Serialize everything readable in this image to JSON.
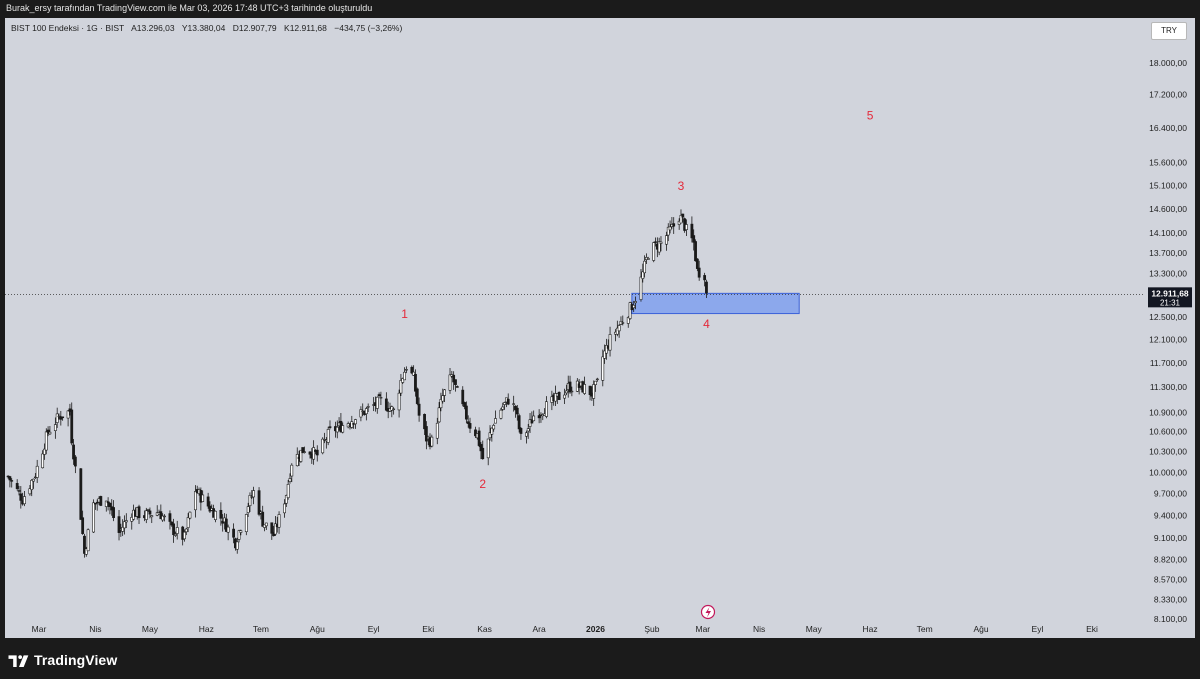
{
  "header": {
    "attribution": "Burak_ersy tarafından TradingView.com ile Mar 03, 2026 17:48 UTC+3 tarihinde oluşturuldu"
  },
  "legend": {
    "symbol": "BIST 100 Endeksi · 1G · BIST",
    "open": "A13.296,03",
    "high": "Y13.380,04",
    "low": "D12.907,79",
    "close": "K12.911,68",
    "change": "−434,75 (−3,26%)"
  },
  "currency": "TRY",
  "brand": {
    "name": "TradingView"
  },
  "colors": {
    "background": "#d1d4dc",
    "candle": "#1a1a1a",
    "annotation": "#e4293a",
    "zone_fill": "#7b9cf0",
    "zone_border": "#3b62d8",
    "price_label_bg": "#131722"
  },
  "chart_data": {
    "type": "candlestick",
    "y_axis": {
      "ticks": [
        "18.000,00",
        "17.200,00",
        "16.400,00",
        "15.600,00",
        "15.100,00",
        "14.600,00",
        "14.100,00",
        "13.700,00",
        "13.300,00",
        "12.500,00",
        "12.100,00",
        "11.700,00",
        "11.300,00",
        "10.900,00",
        "10.600,00",
        "10.300,00",
        "10.000,00",
        "9.700,00",
        "9.400,00",
        "9.100,00",
        "8.820,00",
        "8.570,00",
        "8.330,00",
        "8.100,00"
      ],
      "tick_values": [
        18000,
        17200,
        16400,
        15600,
        15100,
        14600,
        14100,
        13700,
        13300,
        12500,
        12100,
        11700,
        11300,
        10900,
        10600,
        10300,
        10000,
        9700,
        9400,
        9100,
        8820,
        8570,
        8330,
        8100
      ],
      "scale": "log"
    },
    "x_axis": {
      "labels": [
        "Mar",
        "Nis",
        "May",
        "Haz",
        "Tem",
        "Ağu",
        "Eyl",
        "Eki",
        "Kas",
        "Ara",
        "2026",
        "Şub",
        "Mar",
        "Nis",
        "May",
        "Haz",
        "Tem",
        "Ağu",
        "Eyl",
        "Eki"
      ],
      "dates": [
        "2025-03-01",
        "2025-04-01",
        "2025-05-01",
        "2025-06-01",
        "2025-07-01",
        "2025-08-01",
        "2025-09-01",
        "2025-10-01",
        "2025-11-01",
        "2025-12-01",
        "2026-01-01",
        "2026-02-01",
        "2026-03-01",
        "2026-04-01",
        "2026-05-01",
        "2026-06-01",
        "2026-07-01",
        "2026-08-01",
        "2026-09-01",
        "2026-10-01"
      ],
      "bold": [
        "2026"
      ]
    },
    "last_price": {
      "value": 12911.68,
      "label": "12.911,68",
      "countdown": "21:31"
    },
    "zone": {
      "from": "2026-01-21",
      "to": "2026-04-23",
      "low": 12560,
      "high": 12930
    },
    "annotations": [
      {
        "text": "1",
        "date": "2025-09-18",
        "price": 12480
      },
      {
        "text": "2",
        "date": "2025-10-31",
        "price": 9780
      },
      {
        "text": "3",
        "date": "2026-02-17",
        "price": 15000
      },
      {
        "text": "4",
        "date": "2026-03-03",
        "price": 12300
      },
      {
        "text": "5",
        "date": "2026-06-01",
        "price": 16600
      }
    ],
    "path": [
      [
        "2025-02-12",
        9940
      ],
      [
        "2025-02-20",
        9620
      ],
      [
        "2025-02-27",
        9980
      ],
      [
        "2025-03-06",
        10600
      ],
      [
        "2025-03-12",
        10830
      ],
      [
        "2025-03-18",
        10920
      ],
      [
        "2025-03-19",
        10500
      ],
      [
        "2025-03-24",
        9400
      ],
      [
        "2025-03-26",
        8900
      ],
      [
        "2025-03-31",
        9550
      ],
      [
        "2025-04-07",
        9650
      ],
      [
        "2025-04-14",
        9170
      ],
      [
        "2025-04-21",
        9450
      ],
      [
        "2025-04-28",
        9400
      ],
      [
        "2025-05-06",
        9450
      ],
      [
        "2025-05-13",
        9220
      ],
      [
        "2025-05-20",
        9100
      ],
      [
        "2025-05-26",
        9750
      ],
      [
        "2025-06-03",
        9500
      ],
      [
        "2025-06-10",
        9350
      ],
      [
        "2025-06-17",
        9050
      ],
      [
        "2025-06-24",
        9550
      ],
      [
        "2025-06-27",
        9720
      ],
      [
        "2025-07-02",
        9320
      ],
      [
        "2025-07-08",
        9140
      ],
      [
        "2025-07-11",
        9350
      ],
      [
        "2025-07-15",
        9700
      ],
      [
        "2025-07-18",
        10150
      ],
      [
        "2025-07-25",
        10350
      ],
      [
        "2025-08-01",
        10250
      ],
      [
        "2025-08-08",
        10600
      ],
      [
        "2025-08-15",
        10700
      ],
      [
        "2025-08-22",
        10820
      ],
      [
        "2025-08-29",
        10950
      ],
      [
        "2025-09-05",
        11080
      ],
      [
        "2025-09-12",
        10920
      ],
      [
        "2025-09-16",
        11400
      ],
      [
        "2025-09-19",
        11650
      ],
      [
        "2025-09-23",
        11450
      ],
      [
        "2025-09-26",
        10850
      ],
      [
        "2025-09-30",
        10500
      ],
      [
        "2025-10-03",
        10450
      ],
      [
        "2025-10-06",
        10800
      ],
      [
        "2025-10-09",
        11150
      ],
      [
        "2025-10-14",
        11480
      ],
      [
        "2025-10-17",
        11200
      ],
      [
        "2025-10-21",
        10900
      ],
      [
        "2025-10-24",
        10700
      ],
      [
        "2025-10-28",
        10550
      ],
      [
        "2025-10-31",
        10200
      ],
      [
        "2025-11-03",
        10450
      ],
      [
        "2025-11-06",
        10750
      ],
      [
        "2025-11-10",
        10950
      ],
      [
        "2025-11-14",
        11100
      ],
      [
        "2025-11-18",
        10950
      ],
      [
        "2025-11-21",
        10500
      ],
      [
        "2025-11-25",
        10650
      ],
      [
        "2025-11-28",
        10850
      ],
      [
        "2025-12-03",
        10950
      ],
      [
        "2025-12-08",
        11050
      ],
      [
        "2025-12-12",
        11150
      ],
      [
        "2025-12-17",
        11300
      ],
      [
        "2025-12-22",
        11320
      ],
      [
        "2025-12-26",
        11280
      ],
      [
        "2025-12-30",
        11200
      ],
      [
        "2026-01-02",
        11350
      ],
      [
        "2026-01-05",
        11800
      ],
      [
        "2026-01-09",
        12100
      ],
      [
        "2026-01-13",
        12300
      ],
      [
        "2026-01-16",
        12450
      ],
      [
        "2026-01-20",
        12650
      ],
      [
        "2026-01-23",
        12850
      ],
      [
        "2026-01-27",
        13300
      ],
      [
        "2026-01-30",
        13700
      ],
      [
        "2026-02-03",
        13850
      ],
      [
        "2026-02-06",
        13900
      ],
      [
        "2026-02-10",
        14100
      ],
      [
        "2026-02-13",
        14250
      ],
      [
        "2026-02-16",
        14450
      ],
      [
        "2026-02-18",
        14350
      ],
      [
        "2026-02-20",
        14150
      ],
      [
        "2026-02-24",
        13900
      ],
      [
        "2026-02-26",
        13350
      ],
      [
        "2026-03-02",
        13296
      ],
      [
        "2026-03-03",
        12912
      ]
    ]
  }
}
